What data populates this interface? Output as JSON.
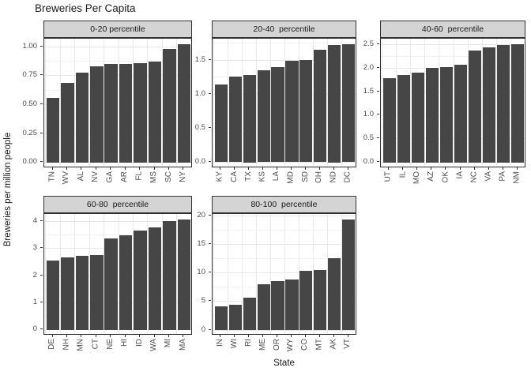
{
  "chart_data": {
    "type": "bar",
    "title": "Breweries Per Capita",
    "xlabel": "State",
    "ylabel": "Breweries per million people",
    "legend": "none",
    "grid": "on",
    "colors": {
      "bar_fill": "#464646",
      "strip_fill": "#d4d4d4",
      "panel_border": "#2f2f2f",
      "grid_major": "#e6e6e6",
      "grid_minor": "#f2f2f2",
      "axis_text": "#4d4d4d",
      "title_text": "#1a1a1a"
    },
    "facets": [
      {
        "label": "0-20 percentile",
        "categories": [
          "TN",
          "WV",
          "AL",
          "NV",
          "GA",
          "AR",
          "FL",
          "MS",
          "SC",
          "NY"
        ],
        "values": [
          0.56,
          0.69,
          0.78,
          0.83,
          0.85,
          0.85,
          0.86,
          0.87,
          0.98,
          1.02
        ],
        "ytick_values": [
          0,
          0.25,
          0.5,
          0.75,
          1.0
        ],
        "ytick_labels": [
          "0.00",
          "0.25",
          "0.50",
          "0.75",
          "1.00"
        ],
        "ylim": [
          -0.051,
          1.071
        ]
      },
      {
        "label": "20-40  percentile",
        "categories": [
          "KY",
          "CA",
          "TX",
          "KS",
          "LA",
          "MD",
          "SD",
          "OH",
          "ND",
          "DC"
        ],
        "values": [
          1.14,
          1.26,
          1.28,
          1.35,
          1.4,
          1.49,
          1.5,
          1.65,
          1.72,
          1.73
        ],
        "ytick_values": [
          0,
          0.5,
          1.0,
          1.5
        ],
        "ytick_labels": [
          "0.0",
          "0.5",
          "1.0",
          "1.5"
        ],
        "ylim": [
          -0.087,
          1.817
        ]
      },
      {
        "label": "40-60  percentile",
        "categories": [
          "UT",
          "IL",
          "MO",
          "AZ",
          "OK",
          "IA",
          "NC",
          "VA",
          "PA",
          "NM"
        ],
        "values": [
          1.78,
          1.86,
          1.91,
          2.0,
          2.02,
          2.08,
          2.37,
          2.44,
          2.49,
          2.5
        ],
        "ytick_values": [
          0,
          0.5,
          1.0,
          1.5,
          2.0,
          2.5
        ],
        "ytick_labels": [
          "0.0",
          "0.5",
          "1.0",
          "1.5",
          "2.0",
          "2.5"
        ],
        "ylim": [
          -0.125,
          2.625
        ]
      },
      {
        "label": "60-80  percentile",
        "categories": [
          "DE",
          "NH",
          "MN",
          "CT",
          "NE",
          "HI",
          "ID",
          "WA",
          "MI",
          "MA"
        ],
        "values": [
          2.55,
          2.67,
          2.72,
          2.75,
          3.37,
          3.5,
          3.67,
          3.78,
          4.01,
          4.07
        ],
        "ytick_values": [
          0,
          1,
          2,
          3,
          4
        ],
        "ytick_labels": [
          "0",
          "1",
          "2",
          "3",
          "4"
        ],
        "ylim": [
          -0.204,
          4.274
        ]
      },
      {
        "label": "80-100  percentile",
        "categories": [
          "IN",
          "WI",
          "RI",
          "ME",
          "OR",
          "WY",
          "CO",
          "MT",
          "AK",
          "VT"
        ],
        "values": [
          4.2,
          4.4,
          5.7,
          8.1,
          8.6,
          8.9,
          10.4,
          10.6,
          12.6,
          19.4
        ],
        "ytick_values": [
          0,
          5,
          10,
          15,
          20
        ],
        "ytick_labels": [
          "0",
          "5",
          "10",
          "15",
          "20"
        ],
        "ylim": [
          -0.97,
          20.37
        ]
      }
    ]
  }
}
